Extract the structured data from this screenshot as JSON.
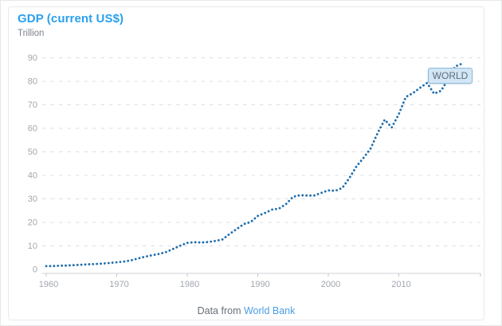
{
  "chart_data": {
    "type": "line",
    "title": "GDP (current US$)",
    "unit": "Trillion",
    "legend_position": "end-of-line-badge",
    "grid": "horizontal-dashed",
    "line_style": "dotted",
    "x_ticks": [
      1960,
      1970,
      1980,
      1990,
      2000,
      2010
    ],
    "y_ticks": [
      0,
      10,
      20,
      30,
      40,
      50,
      60,
      70,
      80,
      90
    ],
    "xlim": [
      1960,
      2019
    ],
    "ylim": [
      0,
      93
    ],
    "x_start_year": 1960,
    "series": [
      {
        "name": "WORLD",
        "color": "#1d6dae",
        "values": [
          1.39,
          1.45,
          1.56,
          1.67,
          1.83,
          2.0,
          2.16,
          2.3,
          2.49,
          2.74,
          3.0,
          3.31,
          3.82,
          4.65,
          5.39,
          6.04,
          6.56,
          7.4,
          8.7,
          10.1,
          11.28,
          11.57,
          11.45,
          11.67,
          12.11,
          12.74,
          15.05,
          17.14,
          19.21,
          20.16,
          22.76,
          23.98,
          25.42,
          25.85,
          27.77,
          30.87,
          31.55,
          31.43,
          31.41,
          32.55,
          33.62,
          33.42,
          34.68,
          38.91,
          43.84,
          47.45,
          51.43,
          57.97,
          63.68,
          60.33,
          66.03,
          73.35,
          74.99,
          77.19,
          79.28,
          74.75,
          75.99,
          80.89,
          86.31,
          87.55
        ]
      }
    ]
  },
  "footer": {
    "prefix": "Data from",
    "link_label": "World Bank"
  },
  "colors": {
    "title_blue": "#2aa0ef",
    "line_blue": "#1d6dae",
    "badge_bg": "#d2e6f5",
    "badge_border": "#8ab9dc",
    "link_blue": "#4a9de4",
    "grid_gray": "#dcdfe4"
  }
}
